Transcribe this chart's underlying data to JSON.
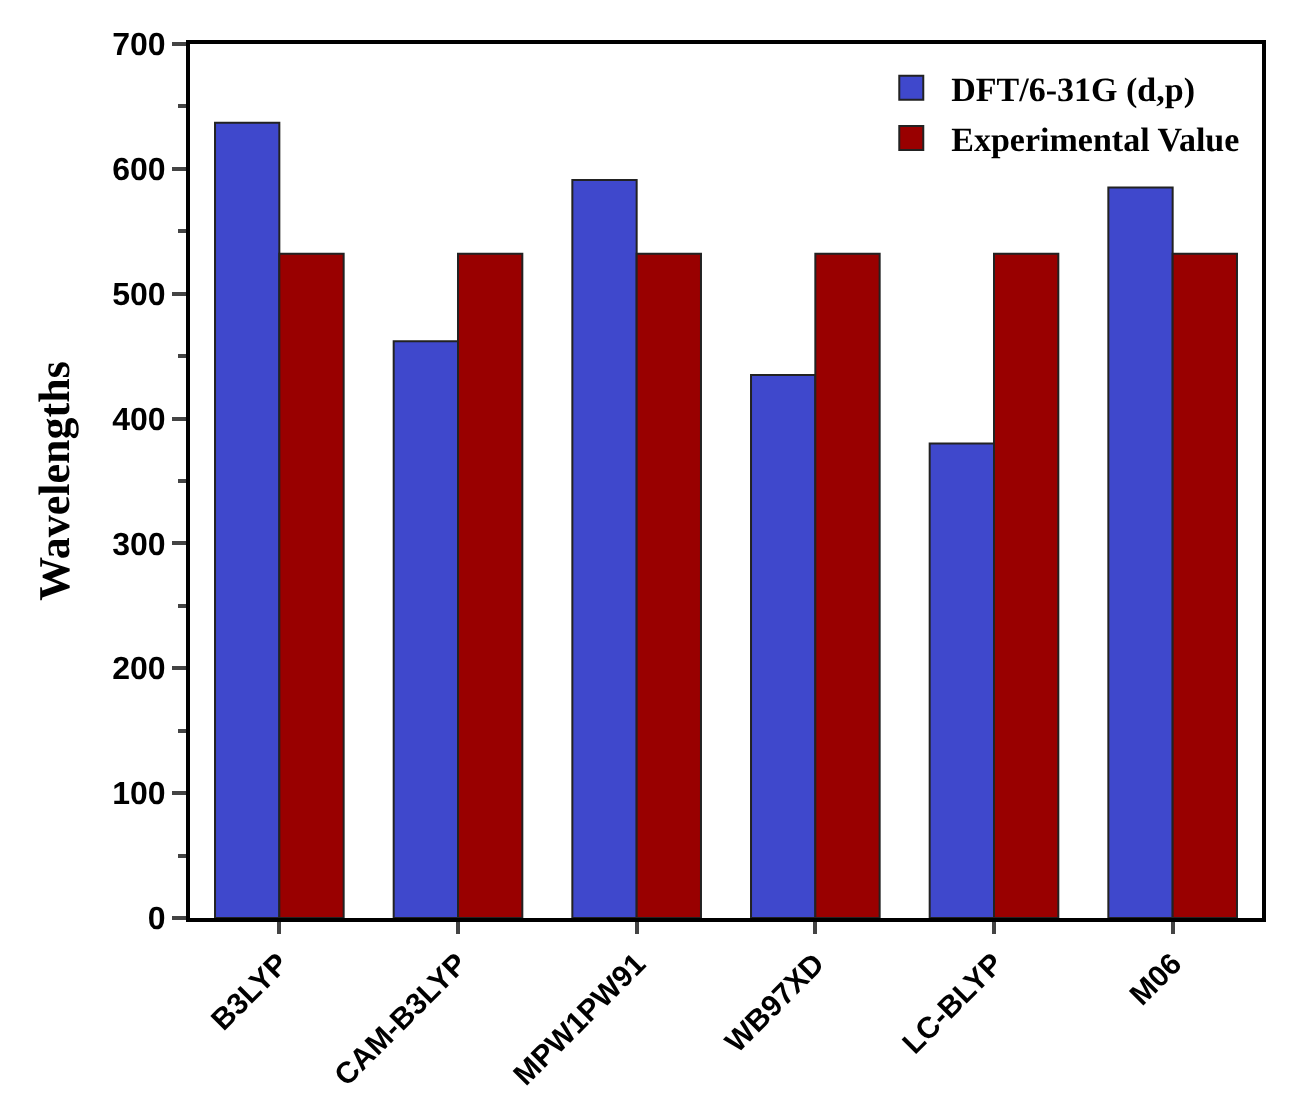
{
  "chart_data": {
    "type": "bar",
    "ylabel": "Wavelengths",
    "categories": [
      "B3LYP",
      "CAM-B3LYP",
      "MPW1PW91",
      "WB97XD",
      "LC-BLYP",
      "M06"
    ],
    "series": [
      {
        "name": "DFT/6-31G (d,p)",
        "color": "#3f48cc",
        "values": [
          637,
          462,
          591,
          435,
          380,
          585
        ]
      },
      {
        "name": "Experimental Value",
        "color": "#990000",
        "values": [
          532,
          532,
          532,
          532,
          532,
          532
        ]
      }
    ],
    "ylim": [
      0,
      700
    ],
    "yticks": [
      0,
      100,
      200,
      300,
      400,
      500,
      600,
      700
    ],
    "legend": "top right"
  }
}
